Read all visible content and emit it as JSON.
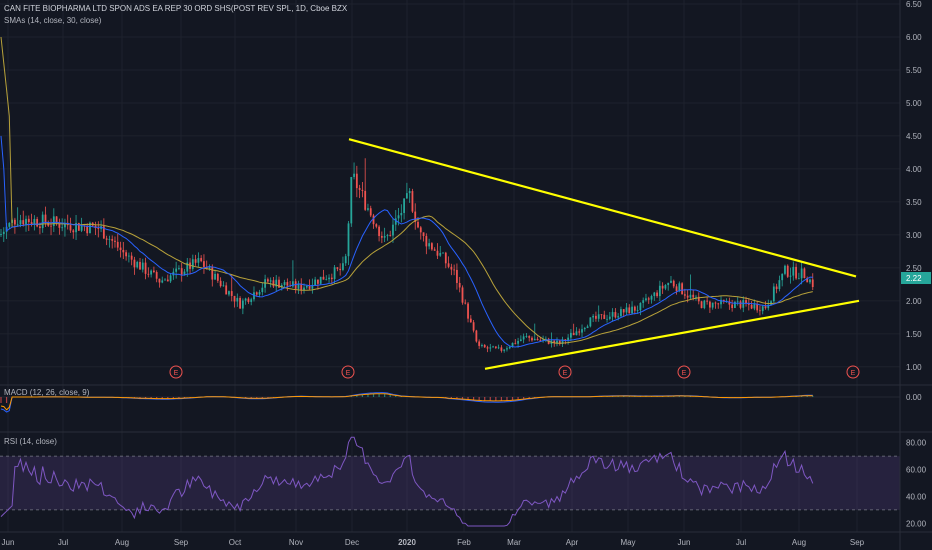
{
  "header": {
    "title": "CAN FITE BIOPHARMA LTD SPON ADS EA REP 30 ORD SHS(POST REV SPL, 1D, Cboe BZX",
    "indicator": "SMAs (14, close, 30, close)"
  },
  "macd": {
    "label": "MACD (12, 26, close, 9)"
  },
  "rsi": {
    "label": "RSI (14, close)"
  },
  "colors": {
    "background": "#131722",
    "up": "#26a69a",
    "down": "#ef5350",
    "sma14": "#2962ff",
    "sma30": "#b8a23a",
    "trendline": "#ffff00",
    "rsi": "#7e57c2",
    "price_tag": "#26a69a"
  },
  "chart_data": [
    {
      "type": "candlestick",
      "symbol_title": "CAN FITE BIOPHARMA LTD SPON ADS EA REP 30 ORD SHS(POST REV SPL, 1D, Cboe BZX",
      "x_ticks": [
        "Jun",
        "Jul",
        "Aug",
        "Sep",
        "Oct",
        "Nov",
        "Dec",
        "2020",
        "Feb",
        "Mar",
        "Apr",
        "May",
        "Jun",
        "Jul",
        "Aug",
        "Sep"
      ],
      "y_ticks": [
        "6.50",
        "6.00",
        "5.50",
        "5.00",
        "4.50",
        "4.00",
        "3.50",
        "3.00",
        "2.50",
        "2.00",
        "1.50",
        "1.00"
      ],
      "ylim": [
        0.8,
        6.5
      ],
      "last_price": "2.22",
      "earnings_markers": [
        "E",
        "E",
        "E",
        "E",
        "E"
      ],
      "price_path_monthly": [
        {
          "month": "Jun",
          "close": 3.0
        },
        {
          "month": "Jul",
          "close": 3.05
        },
        {
          "month": "Aug",
          "close": 2.55
        },
        {
          "month": "Sep",
          "close": 2.3
        },
        {
          "month": "Oct",
          "close": 2.0
        },
        {
          "month": "Nov",
          "close": 2.3
        },
        {
          "month": "Dec",
          "close": 3.8
        },
        {
          "month": "2020",
          "close": 2.8
        },
        {
          "month": "Feb",
          "close": 2.3
        },
        {
          "month": "Mar",
          "close": 1.35
        },
        {
          "month": "Apr",
          "close": 1.6
        },
        {
          "month": "May",
          "close": 1.95
        },
        {
          "month": "Jun",
          "close": 2.05
        },
        {
          "month": "Jul",
          "close": 1.9
        },
        {
          "month": "Aug",
          "close": 2.22
        }
      ],
      "trendlines": [
        {
          "name": "upper",
          "from": {
            "month": "Dec",
            "price": 4.45
          },
          "to": {
            "month": "Aug",
            "price": 2.37
          }
        },
        {
          "name": "lower",
          "from": {
            "month": "Feb",
            "price": 0.97
          },
          "to": {
            "month": "Aug",
            "price": 2.0
          }
        }
      ]
    },
    {
      "type": "line",
      "name": "MACD",
      "y_ticks": [
        "0.00"
      ]
    },
    {
      "type": "line",
      "name": "RSI",
      "y_ticks": [
        "80.00",
        "60.00",
        "40.00",
        "20.00"
      ],
      "ylim": [
        15,
        85
      ],
      "bands": [
        30,
        70
      ]
    }
  ]
}
